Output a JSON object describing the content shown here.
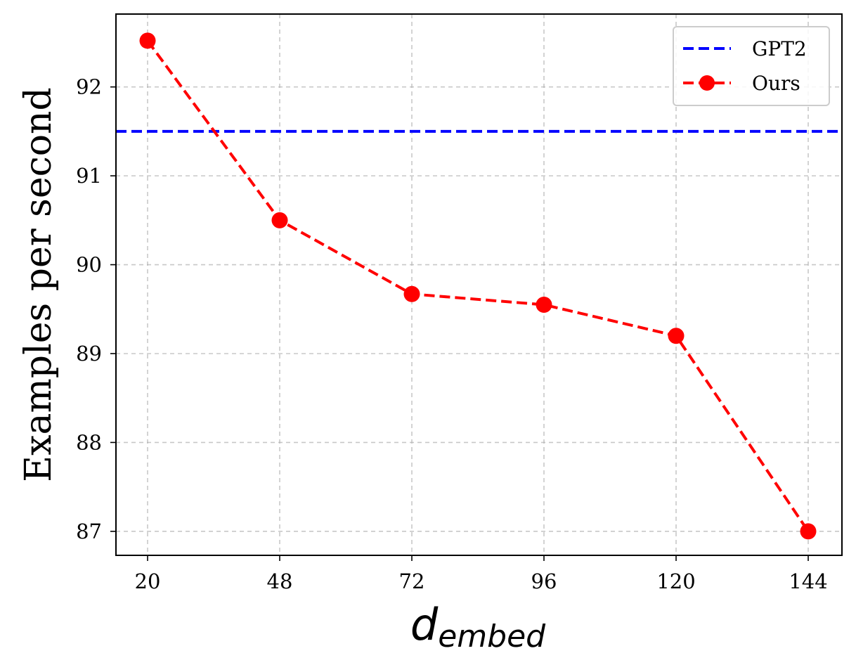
{
  "chart_data": {
    "type": "line",
    "title": "",
    "xlabel": "d",
    "xlabel_subscript": "embed",
    "ylabel": "Examples per second",
    "x": [
      20,
      48,
      72,
      96,
      120,
      144
    ],
    "x_tick_labels": [
      "20",
      "48",
      "72",
      "96",
      "120",
      "144"
    ],
    "y_ticks": [
      87,
      88,
      89,
      90,
      91,
      92
    ],
    "y_tick_labels": [
      "87",
      "88",
      "89",
      "90",
      "91",
      "92"
    ],
    "ylim": [
      86.73,
      92.82
    ],
    "grid": true,
    "legend_position": "top-right",
    "series": [
      {
        "name": "GPT2",
        "kind": "hline",
        "value": 91.5,
        "color": "#0000ff",
        "style": "dashed"
      },
      {
        "name": "Ours",
        "kind": "line-markers",
        "values": [
          92.52,
          90.5,
          89.67,
          89.55,
          89.2,
          87.0
        ],
        "color": "#ff0000",
        "style": "dashed",
        "marker": "circle"
      }
    ]
  }
}
